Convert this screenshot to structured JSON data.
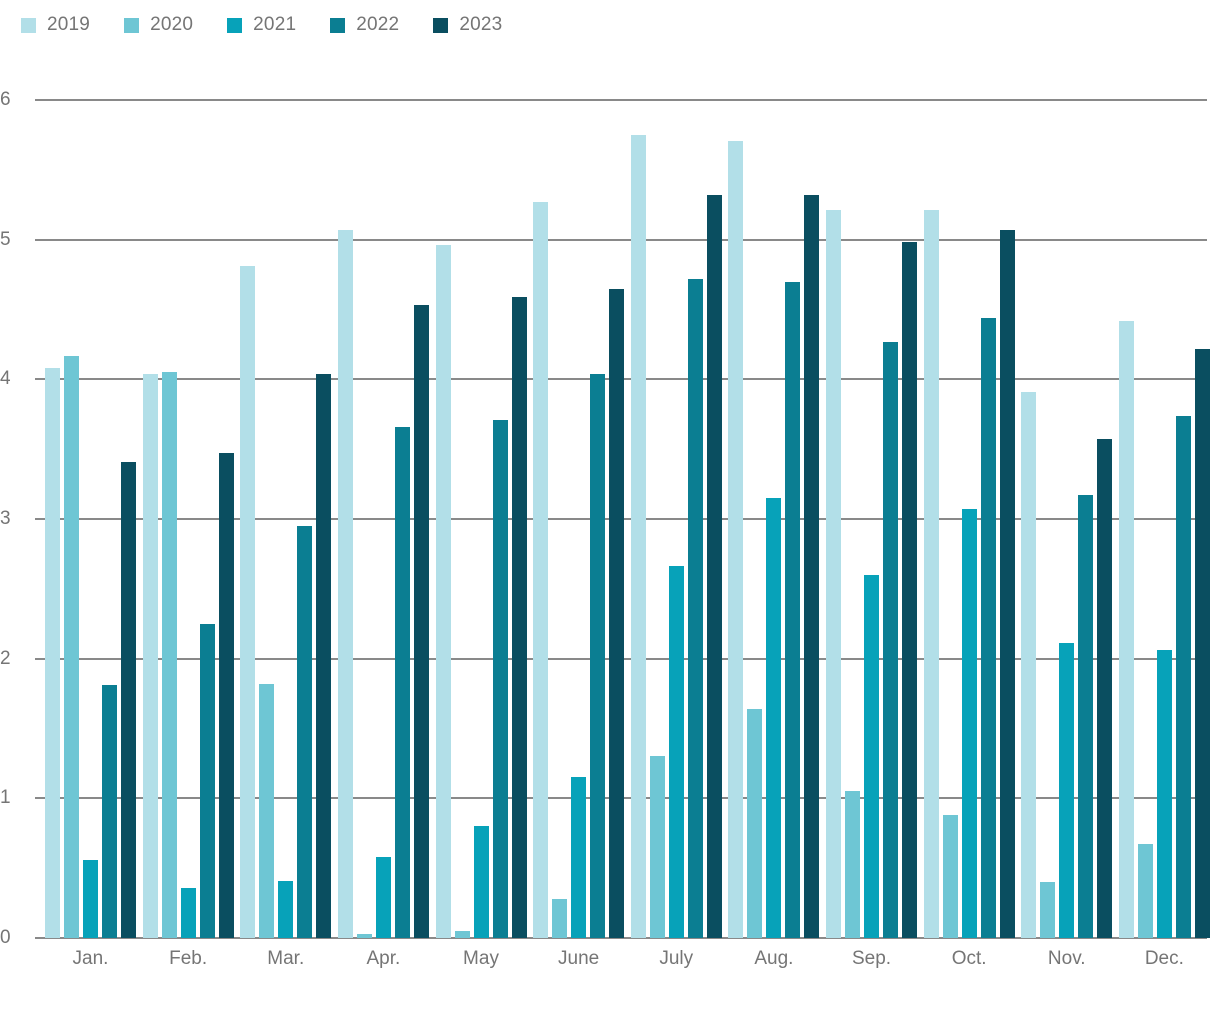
{
  "chart_data": {
    "type": "bar",
    "title": "",
    "xlabel": "",
    "ylabel": "",
    "ylim": [
      0,
      6
    ],
    "yticks": [
      0,
      1,
      2,
      3,
      4,
      5,
      6
    ],
    "grid": true,
    "legend_position": "top-left",
    "categories": [
      "Jan.",
      "Feb.",
      "Mar.",
      "Apr.",
      "May",
      "June",
      "July",
      "Aug.",
      "Sep.",
      "Oct.",
      "Nov.",
      "Dec."
    ],
    "series": [
      {
        "name": "2019",
        "color": "#b2dfe8",
        "values": [
          4.08,
          4.04,
          4.81,
          5.07,
          4.96,
          5.27,
          5.75,
          5.71,
          5.21,
          5.21,
          3.91,
          4.42
        ]
      },
      {
        "name": "2020",
        "color": "#6ec6d4",
        "values": [
          4.17,
          4.05,
          1.82,
          0.03,
          0.05,
          0.28,
          1.3,
          1.64,
          1.05,
          0.88,
          0.4,
          0.67
        ]
      },
      {
        "name": "2021",
        "color": "#07a2b9",
        "values": [
          0.56,
          0.36,
          0.41,
          0.58,
          0.8,
          1.15,
          2.66,
          3.15,
          2.6,
          3.07,
          2.11,
          2.06
        ]
      },
      {
        "name": "2022",
        "color": "#0b7e92",
        "values": [
          1.81,
          2.25,
          2.95,
          3.66,
          3.71,
          4.04,
          4.72,
          4.7,
          4.27,
          4.44,
          3.17,
          3.74
        ]
      },
      {
        "name": "2023",
        "color": "#0a4e60",
        "values": [
          3.41,
          3.47,
          4.04,
          4.53,
          4.59,
          4.65,
          5.32,
          5.32,
          4.98,
          5.07,
          3.57,
          4.22
        ]
      }
    ]
  },
  "style": {
    "text_color": "#757575",
    "gridline_color": "#898989",
    "background_color": "#ffffff"
  }
}
